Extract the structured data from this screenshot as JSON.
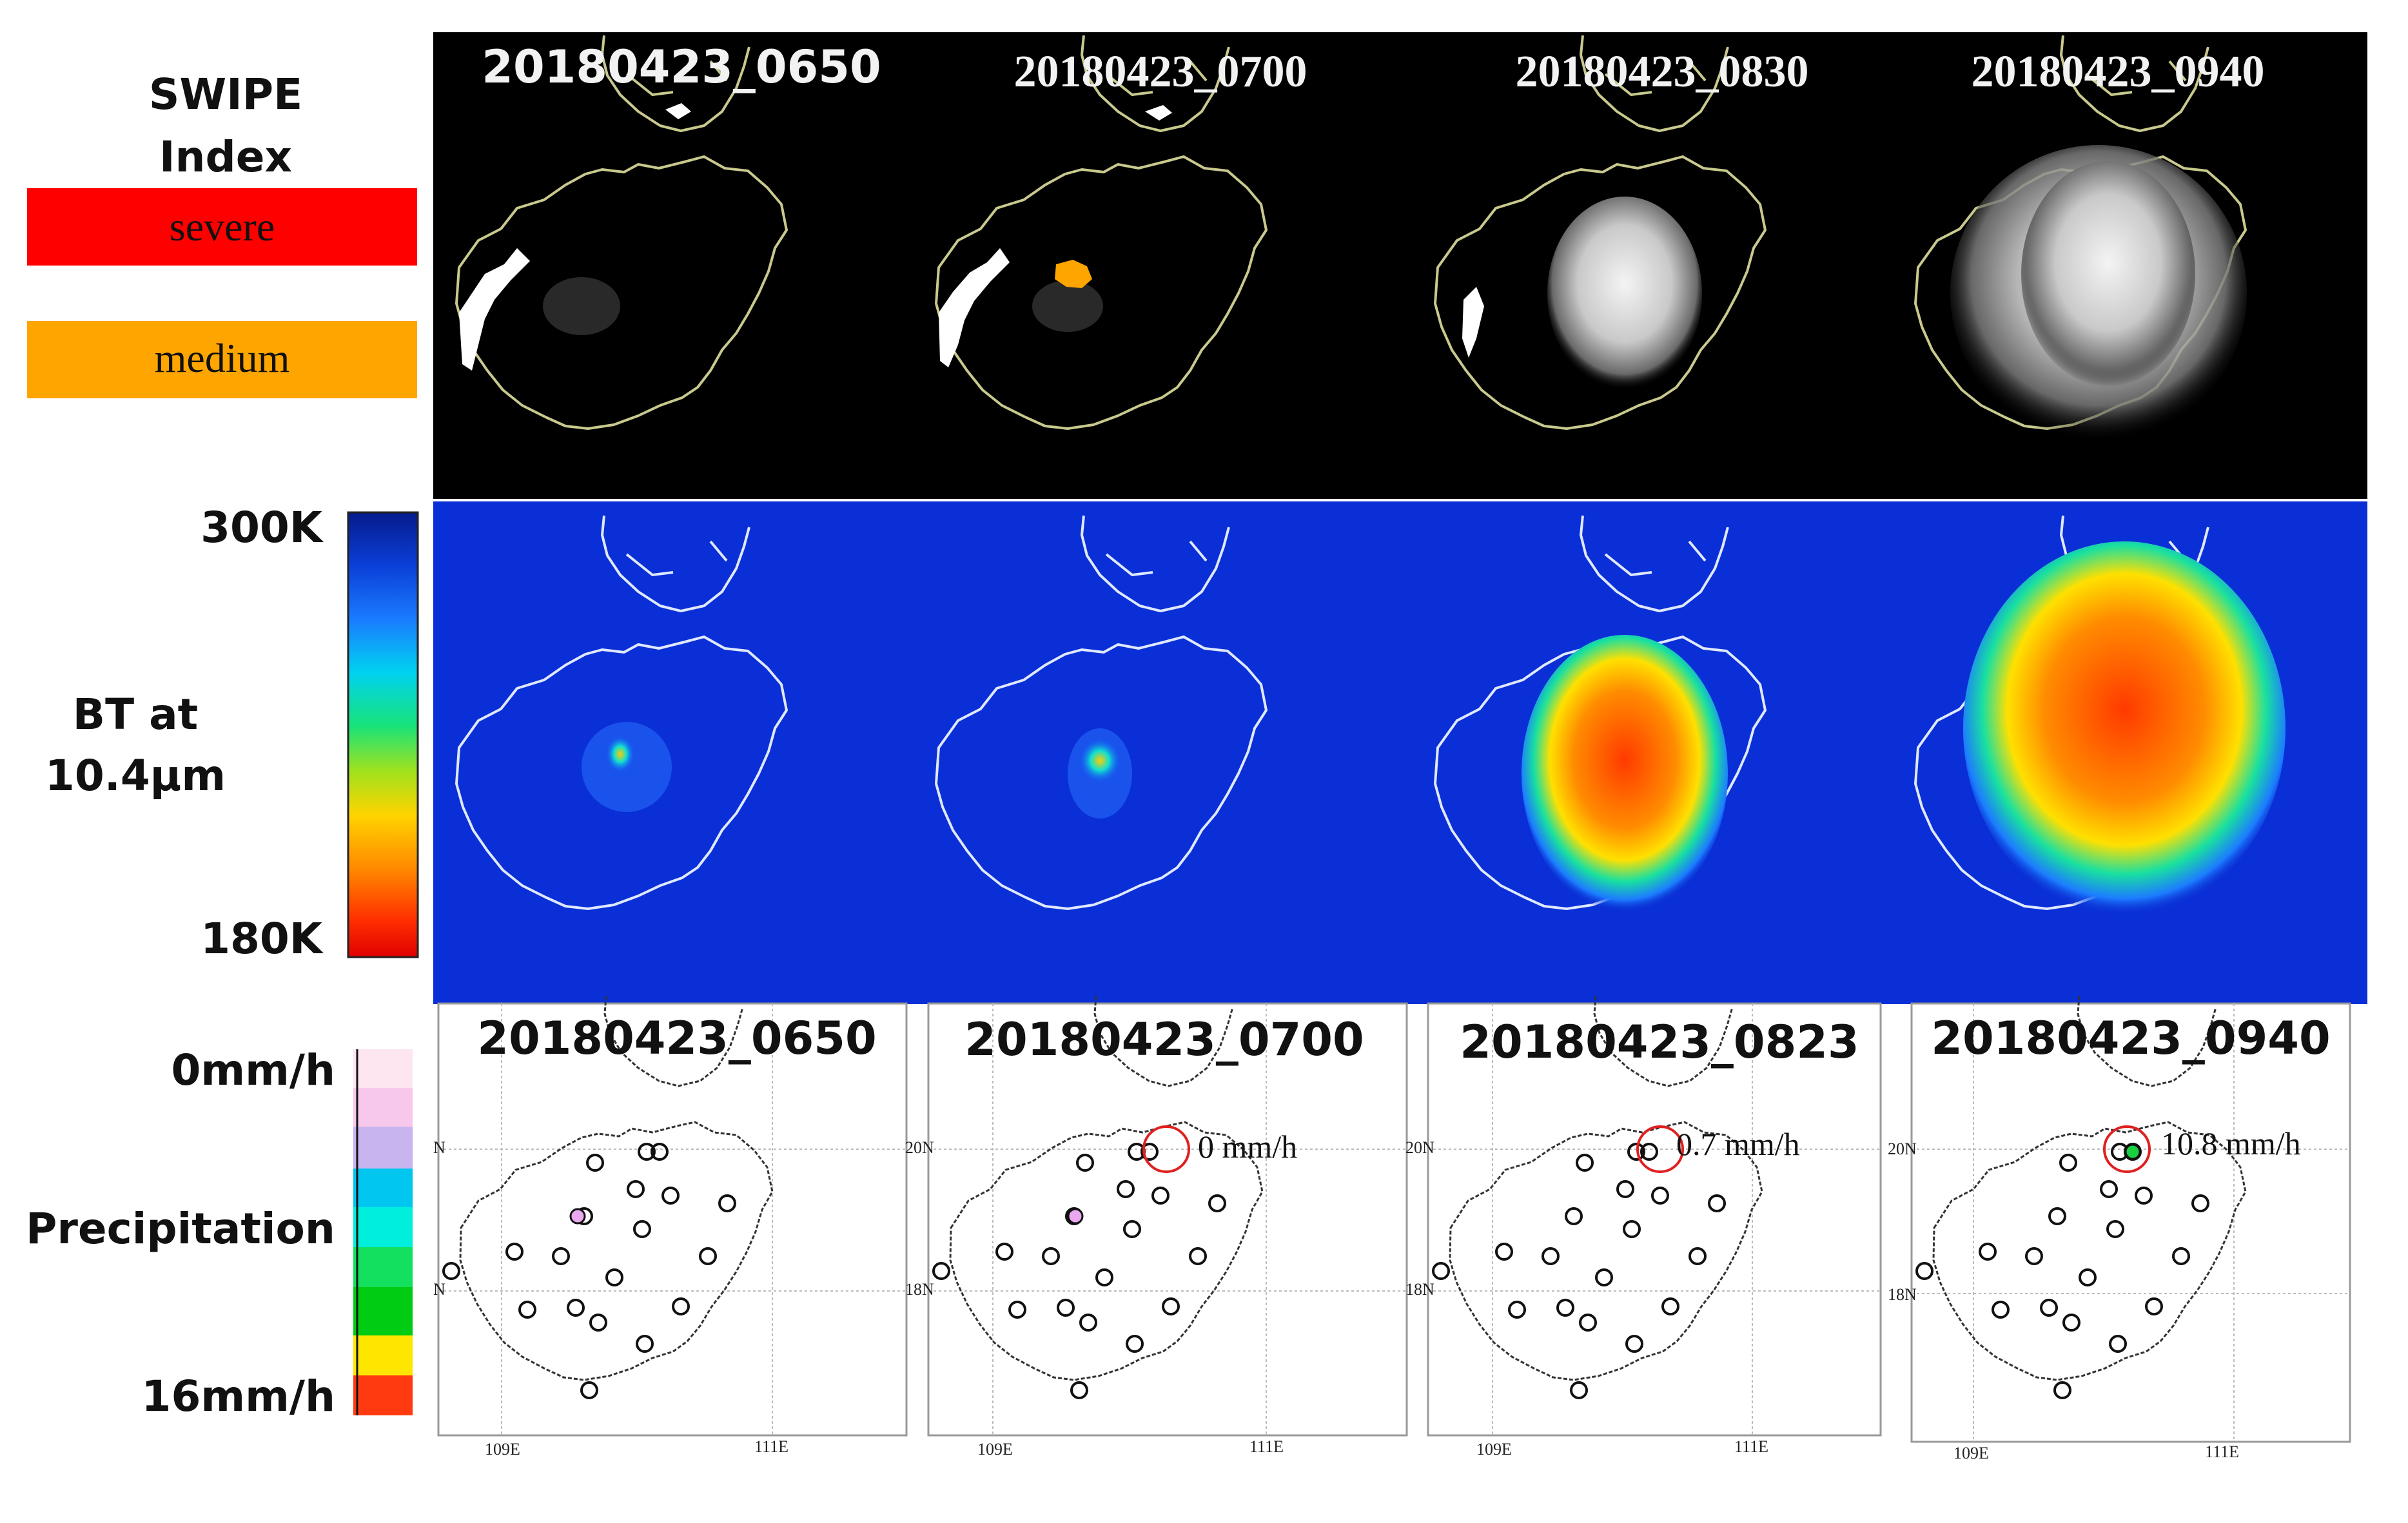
{
  "legend": {
    "swipe_title_1": "SWIPE",
    "swipe_title_2": "Index",
    "severe_label": "severe",
    "medium_label": "medium",
    "severe_color": "#ff0000",
    "medium_color": "#ffa500",
    "bt_top": "300K",
    "bt_title_1": "BT at",
    "bt_title_2": "10.4µm",
    "bt_bottom": "180K",
    "precip_top": "0mm/h",
    "precip_title": "Precipitation",
    "precip_bottom": "16mm/h"
  },
  "rows": {
    "swipe": {
      "panels": [
        {
          "time": "20180423_0650"
        },
        {
          "time": "20180423_0700"
        },
        {
          "time": "20180423_0830"
        },
        {
          "time": "20180423_0940"
        }
      ]
    },
    "bt": {
      "panels": [
        {},
        {},
        {},
        {}
      ]
    },
    "precip": {
      "panels": [
        {
          "time": "20180423_0650",
          "annotation": "",
          "lat_top": "N",
          "lat_bottom": "N",
          "lon_left": "109E",
          "lon_right": "111E"
        },
        {
          "time": "20180423_0700",
          "annotation": "0 mm/h",
          "lat_top": "20N",
          "lat_bottom": "18N",
          "lon_left": "109E",
          "lon_right": "111E"
        },
        {
          "time": "20180423_0823",
          "annotation": "0.7 mm/h",
          "lat_top": "20N",
          "lat_bottom": "18N",
          "lon_left": "109E",
          "lon_right": "111E"
        },
        {
          "time": "20180423_0940",
          "annotation": "10.8 mm/h",
          "lat_top": "20N",
          "lat_bottom": "18N",
          "lon_left": "109E",
          "lon_right": "111E"
        }
      ]
    }
  }
}
